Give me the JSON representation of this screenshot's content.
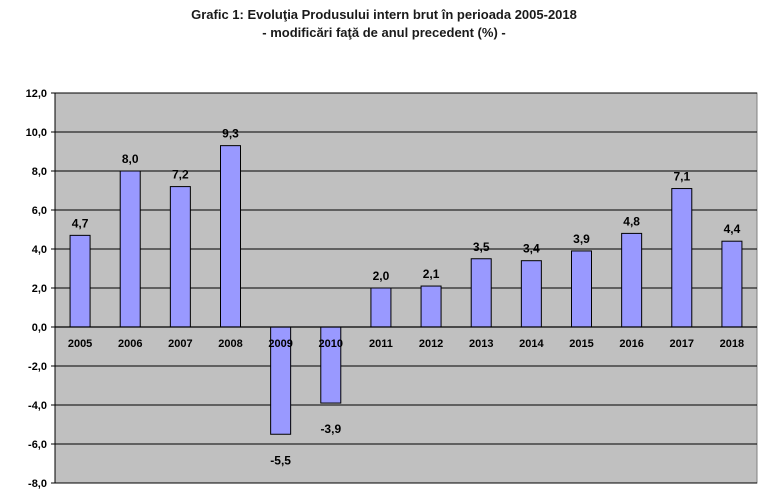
{
  "chart_data": {
    "type": "bar",
    "title": "Grafic 1: Evoluţia Produsului intern brut în perioada 2005-2018",
    "subtitle": "- modificări faţă de anul precedent (%) -",
    "categories": [
      "2005",
      "2006",
      "2007",
      "2008",
      "2009",
      "2010",
      "2011",
      "2012",
      "2013",
      "2014",
      "2015",
      "2016",
      "2017",
      "2018"
    ],
    "values": [
      4.7,
      8.0,
      7.2,
      9.3,
      -5.5,
      -3.9,
      2.0,
      2.1,
      3.5,
      3.4,
      3.9,
      4.8,
      7.1,
      4.4
    ],
    "value_labels": [
      "4,7",
      "8,0",
      "7,2",
      "9,3",
      "-5,5",
      "-3,9",
      "2,0",
      "2,1",
      "3,5",
      "3,4",
      "3,9",
      "4,8",
      "7,1",
      "4,4"
    ],
    "ylim": [
      -8,
      12
    ],
    "yticks": [
      12,
      10,
      8,
      6,
      4,
      2,
      0,
      -2,
      -4,
      -6,
      -8
    ],
    "ytick_labels": [
      "12,0",
      "10,0",
      "8,0",
      "6,0",
      "4,0",
      "2,0",
      "0,0",
      "-2,0",
      "-4,0",
      "-6,0",
      "-8,0"
    ],
    "xlabel": "",
    "ylabel": "",
    "grid": true,
    "legend": "none",
    "colors": {
      "bar_fill": "#9999ff",
      "bar_stroke": "#000000",
      "plot_background": "#c0c0c0",
      "grid": "#000000"
    }
  }
}
